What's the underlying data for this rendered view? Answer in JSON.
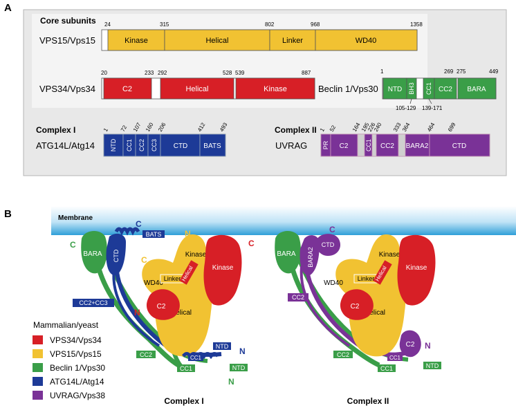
{
  "panelA": {
    "label": "A",
    "core_title": "Core subunits",
    "vps15": {
      "name": "VPS15/Vps15",
      "positions": [
        "24",
        "315",
        "802",
        "968",
        "1358"
      ],
      "domains": [
        "Kinase",
        "Helical",
        "Linker",
        "WD40"
      ]
    },
    "vps34": {
      "name": "VPS34/Vps34",
      "positions": [
        "20",
        "233",
        "292",
        "528",
        "539",
        "887"
      ],
      "domains": [
        "C2",
        "Helical",
        "Kinase"
      ]
    },
    "beclin": {
      "name": "Beclin 1/Vps30",
      "positions": [
        "1",
        "269",
        "275",
        "449"
      ],
      "domains": [
        "NTD",
        "BH3",
        "CC1",
        "CC2",
        "BARA"
      ],
      "ranges": [
        "105-129",
        "139-171"
      ]
    },
    "complex1": {
      "title": "Complex I",
      "name": "ATG14L/Atg14",
      "positions": [
        "1",
        "72",
        "107",
        "160",
        "206",
        "412",
        "493"
      ],
      "domains": [
        "NTD",
        "CC1",
        "CC2",
        "CC3",
        "CTD",
        "BATS"
      ]
    },
    "complex2": {
      "title": "Complex II",
      "name": "UVRAG",
      "positions": [
        "1",
        "52",
        "164",
        "195",
        "226",
        "240",
        "333",
        "364",
        "464",
        "699"
      ],
      "domains": [
        "PR",
        "C2",
        "CC1",
        "CC2",
        "BARA2",
        "CTD"
      ]
    }
  },
  "panelB": {
    "label": "B",
    "membrane": "Membrane",
    "legend_title": "Mammalian/yeast",
    "legend": [
      "VPS34/Vps34",
      "VPS15/Vps15",
      "Beclin 1/Vps30",
      "ATG14L/Atg14",
      "UVRAG/Vps38"
    ],
    "caption1": "Complex I",
    "caption2": "Complex II",
    "c1": {
      "bara": "BARA",
      "ctd": "CTD",
      "bats": "BATS",
      "wd40": "WD40",
      "linker": "Linker",
      "helical_top": "Helical",
      "kinase": "Kinase",
      "kinase_big": "Kinase",
      "c2": "C2",
      "helical": "Helical",
      "cc2cc3": "CC2+CC3",
      "ntd_blue": "NTD",
      "cc1_blue": "CC1",
      "cc2_green": "CC2",
      "cc1_green": "CC1",
      "ntd_green": "NTD",
      "c_green": "C",
      "c_blue": "C",
      "n_yellow": "N",
      "c_red": "C",
      "c_yellow": "C",
      "n_red": "N",
      "n_blue": "N",
      "n_green": "N"
    },
    "c2": {
      "bara": "BARA",
      "bara2": "BARA2",
      "ctd": "CTD",
      "wd40": "WD40",
      "linker": "Linker",
      "helical_top": "Helical",
      "kinase": "Kinase",
      "kinase_big": "Kinase",
      "c2": "C2",
      "helical": "Helical",
      "cc2_purple": "CC2",
      "c2_purple": "C2",
      "cc1_purple": "CC1",
      "cc2_green": "CC2",
      "cc1_green": "CC1",
      "ntd_green": "NTD",
      "c_purple": "C",
      "n_purple": "N"
    }
  },
  "colors": {
    "vps34": "#d71f26",
    "vps15": "#f1c232",
    "beclin": "#3a9e48",
    "atg14": "#1d3a97",
    "uvrag": "#7a3297",
    "panel_bg": "#e8e8e8",
    "membrane": "#2f9fd8"
  }
}
